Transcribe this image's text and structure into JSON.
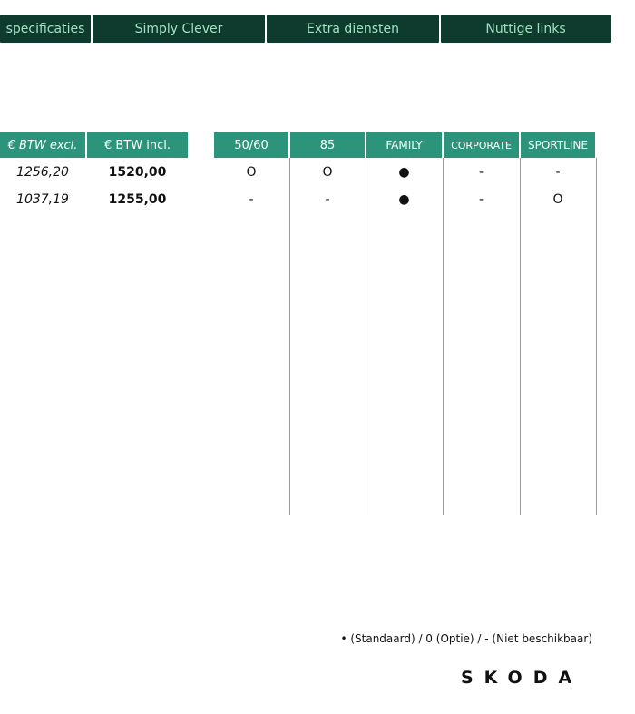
{
  "nav": {
    "tabs": [
      {
        "label": "specificaties"
      },
      {
        "label": "Simply Clever"
      },
      {
        "label": "Extra diensten"
      },
      {
        "label": "Nuttige links"
      }
    ]
  },
  "price_table": {
    "headers": [
      "€ BTW excl.",
      "€ BTW incl."
    ],
    "rows": [
      [
        "1256,20",
        "1520,00"
      ],
      [
        "1037,19",
        "1255,00"
      ]
    ]
  },
  "trim_table": {
    "headers": [
      "50/60",
      "85",
      "FAMILY",
      "CORPORATE",
      "SPORTLINE"
    ],
    "rows": [
      [
        "O",
        "O",
        "●",
        "-",
        "-"
      ],
      [
        "-",
        "-",
        "●",
        "-",
        "O"
      ]
    ]
  },
  "legend": "• (Standaard) / 0 (Optie) / - (Niet beschikbaar)",
  "logo": "SKODA",
  "colors": {
    "nav_bg": "#0e3b2e",
    "nav_text": "#9fe3bf",
    "header_bg": "#2c947a"
  }
}
